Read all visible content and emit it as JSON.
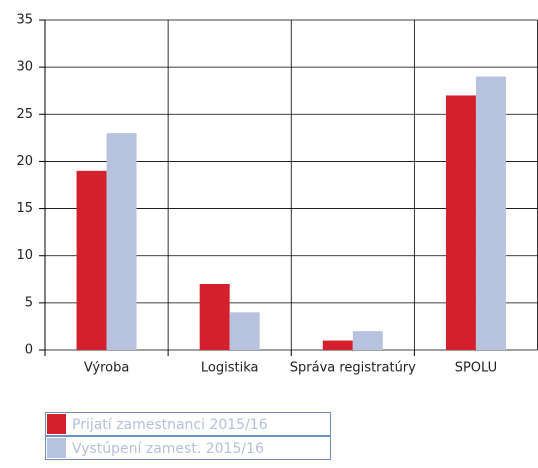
{
  "chart_data": {
    "type": "bar",
    "categories": [
      "Výroba",
      "Logistika",
      "Správa registratúry",
      "SPOLU"
    ],
    "series": [
      {
        "name": "Prijatí zamestnanci 2015/16",
        "color": "#d4202c",
        "values": [
          19,
          7,
          1,
          27
        ]
      },
      {
        "name": "Vystúpení zamest. 2015/16",
        "color": "#b7c2de",
        "values": [
          23,
          4,
          2,
          29
        ]
      }
    ],
    "ylim": [
      0,
      35
    ],
    "yticks": [
      0,
      5,
      10,
      15,
      20,
      25,
      30,
      35
    ],
    "grid": true,
    "legend": "bottom-left"
  }
}
